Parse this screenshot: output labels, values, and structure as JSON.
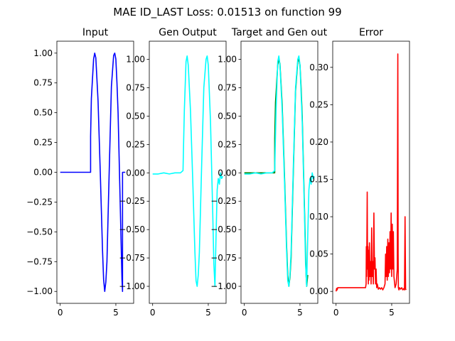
{
  "suptitle": "MAE ID_LAST Loss: 0.01513 on function 99",
  "colors": {
    "input": "#0000ff",
    "gen": "#00ffff",
    "target": "#008000",
    "error": "#ff0000"
  },
  "chart_data": [
    {
      "type": "line",
      "title": "Input",
      "xlim": [
        -0.3,
        6.6
      ],
      "ylim": [
        -1.1,
        1.1
      ],
      "xticks": [
        0,
        5
      ],
      "xticklabels": [
        "0",
        "5"
      ],
      "yticks": [
        -1.0,
        -0.75,
        -0.5,
        -0.25,
        0.0,
        0.25,
        0.5,
        0.75,
        1.0
      ],
      "yticklabels": [
        "−1.00",
        "−0.75",
        "−0.50",
        "−0.25",
        "0.00",
        "0.25",
        "0.50",
        "0.75",
        "1.00"
      ],
      "yaxis": "left",
      "series": [
        {
          "color": "#0000ff",
          "x": [
            0.0,
            0.5,
            1.0,
            1.5,
            2.0,
            2.5,
            2.73,
            2.73,
            2.8,
            3.0,
            3.1,
            3.2,
            3.4,
            3.6,
            3.8,
            3.9,
            4.0,
            4.1,
            4.2,
            4.4,
            4.6,
            4.8,
            4.9,
            5.0,
            5.1,
            5.2,
            5.4,
            5.5,
            5.55,
            5.6,
            5.6,
            5.65,
            5.7,
            5.75,
            5.8,
            5.85
          ],
          "y": [
            0,
            0,
            0,
            0,
            0,
            0,
            0,
            0.3,
            0.62,
            0.95,
            1.0,
            0.96,
            0.6,
            0.0,
            -0.65,
            -0.9,
            -1.0,
            -0.92,
            -0.75,
            0.0,
            0.72,
            0.98,
            1.0,
            0.95,
            0.75,
            0.5,
            -0.3,
            -0.7,
            -0.9,
            -1.0,
            0,
            0,
            0,
            0,
            0,
            0
          ]
        }
      ]
    },
    {
      "type": "line",
      "title": "Gen Output",
      "xlim": [
        -0.3,
        6.6
      ],
      "ylim": [
        -1.15,
        1.16
      ],
      "xticks": [
        0,
        5
      ],
      "xticklabels": [
        "0",
        "5"
      ],
      "yticks": [
        -1.0,
        -0.75,
        -0.5,
        -0.25,
        0.0,
        0.25,
        0.5,
        0.75,
        1.0
      ],
      "yticklabels": [
        "−1.00",
        "−0.75",
        "−0.50",
        "−0.25",
        "0.00",
        "0.25",
        "0.50",
        "0.75",
        "1.00"
      ],
      "yaxis": "right",
      "series": [
        {
          "color": "#00ffff",
          "x": [
            0.0,
            0.5,
            1.0,
            1.5,
            2.0,
            2.5,
            2.73,
            2.78,
            2.85,
            3.0,
            3.1,
            3.2,
            3.4,
            3.6,
            3.8,
            3.9,
            4.0,
            4.1,
            4.2,
            4.4,
            4.6,
            4.8,
            4.9,
            5.0,
            5.1,
            5.2,
            5.4,
            5.5,
            5.6,
            5.7,
            5.8,
            5.9,
            6.0,
            6.1,
            6.2,
            6.3
          ],
          "y": [
            -0.01,
            -0.01,
            0.0,
            -0.01,
            0.0,
            0.0,
            0.02,
            0.25,
            0.55,
            0.98,
            1.03,
            0.95,
            0.55,
            -0.05,
            -0.7,
            -0.95,
            -1.0,
            -0.9,
            -0.7,
            0.05,
            0.75,
            1.0,
            1.03,
            0.95,
            0.7,
            0.45,
            -0.35,
            -0.8,
            -1.0,
            -0.55,
            -0.15,
            -0.05,
            -0.1,
            0.0,
            -0.05,
            -0.03
          ]
        }
      ]
    },
    {
      "type": "line",
      "title": "Target and Gen out",
      "xlim": [
        -0.3,
        6.6
      ],
      "ylim": [
        -1.15,
        1.16
      ],
      "xticks": [
        0,
        5
      ],
      "xticklabels": [
        "0",
        "5"
      ],
      "yticks": [
        -1.0,
        -0.75,
        -0.5,
        -0.25,
        0.0,
        0.25,
        0.5,
        0.75,
        1.0
      ],
      "yticklabels": [
        "−1.00",
        "−0.75",
        "−0.50",
        "−0.25",
        "0.00",
        "0.25",
        "0.50",
        "0.75",
        "1.00"
      ],
      "yaxis": "right",
      "series": [
        {
          "color": "#008000",
          "x": [
            0.0,
            0.5,
            1.0,
            1.5,
            2.0,
            2.5,
            2.73,
            2.73,
            2.8,
            3.0,
            3.1,
            3.2,
            3.4,
            3.6,
            3.8,
            3.9,
            4.0,
            4.1,
            4.2,
            4.4,
            4.6,
            4.8,
            4.9,
            5.0,
            5.1,
            5.2,
            5.4,
            5.5,
            5.55,
            5.6,
            5.65,
            5.7
          ],
          "y": [
            0,
            0,
            0,
            0,
            0,
            0,
            0,
            0.3,
            0.62,
            0.95,
            1.0,
            0.96,
            0.6,
            0.0,
            -0.65,
            -0.9,
            -1.0,
            -0.92,
            -0.75,
            0.0,
            0.72,
            0.98,
            1.0,
            0.95,
            0.75,
            0.5,
            -0.3,
            -0.7,
            -0.9,
            -1.0,
            -0.95,
            -0.9
          ]
        },
        {
          "color": "#00ffff",
          "x": [
            0.0,
            0.5,
            1.0,
            1.5,
            2.0,
            2.5,
            2.73,
            2.78,
            2.85,
            3.0,
            3.1,
            3.2,
            3.4,
            3.6,
            3.8,
            3.9,
            4.0,
            4.1,
            4.2,
            4.4,
            4.6,
            4.8,
            4.9,
            5.0,
            5.1,
            5.2,
            5.4,
            5.5,
            5.6,
            5.7,
            5.8,
            5.9,
            6.0,
            6.1,
            6.2,
            6.3
          ],
          "y": [
            -0.01,
            -0.01,
            0.0,
            -0.01,
            0.0,
            0.0,
            0.02,
            0.25,
            0.55,
            0.98,
            1.03,
            0.95,
            0.55,
            -0.05,
            -0.7,
            -0.95,
            -1.0,
            -0.9,
            -0.7,
            0.05,
            0.75,
            1.0,
            1.03,
            0.95,
            0.7,
            0.45,
            -0.35,
            -0.8,
            -1.0,
            -0.55,
            -0.15,
            -0.05,
            -0.1,
            0.0,
            -0.05,
            -0.03
          ]
        }
      ]
    },
    {
      "type": "line",
      "title": "Error",
      "xlim": [
        -0.3,
        6.6
      ],
      "ylim": [
        -0.016,
        0.335
      ],
      "xticks": [
        0,
        5
      ],
      "xticklabels": [
        "0",
        "5"
      ],
      "yticks": [
        0.0,
        0.05,
        0.1,
        0.15,
        0.2,
        0.25,
        0.3
      ],
      "yticklabels": [
        "0.00",
        "0.05",
        "0.10",
        "0.15",
        "0.20",
        "0.25",
        "0.30"
      ],
      "yaxis": "right",
      "series": [
        {
          "color": "#ff0000",
          "x": [
            0.0,
            0.05,
            0.1,
            0.15,
            0.2,
            0.5,
            1.0,
            1.5,
            2.0,
            2.5,
            2.65,
            2.7,
            2.72,
            2.75,
            2.8,
            2.83,
            2.86,
            2.9,
            2.93,
            2.96,
            3.0,
            3.05,
            3.1,
            3.15,
            3.2,
            3.25,
            3.3,
            3.35,
            3.4,
            3.45,
            3.5,
            3.55,
            3.6,
            3.65,
            3.7,
            3.8,
            3.9,
            4.0,
            4.1,
            4.2,
            4.3,
            4.4,
            4.45,
            4.5,
            4.55,
            4.6,
            4.65,
            4.7,
            4.75,
            4.8,
            4.85,
            4.9,
            4.95,
            5.0,
            5.05,
            5.1,
            5.15,
            5.2,
            5.3,
            5.4,
            5.5,
            5.55,
            5.58,
            5.6,
            5.65,
            5.7,
            5.8,
            5.9,
            6.0,
            6.1,
            6.15,
            6.2,
            6.25,
            6.3
          ],
          "y": [
            0.0,
            0.004,
            0.002,
            0.005,
            0.005,
            0.005,
            0.005,
            0.005,
            0.005,
            0.005,
            0.005,
            0.01,
            0.06,
            0.02,
            0.133,
            0.03,
            0.06,
            0.01,
            0.055,
            0.015,
            0.065,
            0.02,
            0.04,
            0.01,
            0.085,
            0.02,
            0.04,
            0.01,
            0.105,
            0.03,
            0.045,
            0.01,
            0.03,
            0.005,
            0.01,
            0.003,
            0.005,
            0.003,
            0.005,
            0.002,
            0.005,
            0.01,
            0.05,
            0.02,
            0.06,
            0.015,
            0.07,
            0.02,
            0.065,
            0.025,
            0.08,
            0.03,
            0.105,
            0.02,
            0.09,
            0.03,
            0.08,
            0.02,
            0.005,
            0.01,
            0.03,
            0.318,
            0.05,
            0.005,
            0.002,
            0.005,
            0.003,
            0.005,
            0.002,
            0.004,
            0.002,
            0.1,
            0.003,
            0.002
          ]
        }
      ]
    }
  ]
}
